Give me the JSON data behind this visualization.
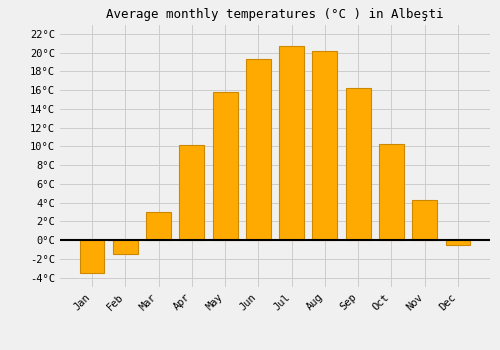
{
  "title": "Average monthly temperatures (°C ) in Albeşti",
  "months": [
    "Jan",
    "Feb",
    "Mar",
    "Apr",
    "May",
    "Jun",
    "Jul",
    "Aug",
    "Sep",
    "Oct",
    "Nov",
    "Dec"
  ],
  "values": [
    -3.5,
    -1.5,
    3.0,
    10.2,
    15.8,
    19.3,
    20.7,
    20.2,
    16.2,
    10.3,
    4.3,
    -0.5
  ],
  "bar_color": "#FFAA00",
  "bar_edge_color": "#CC8800",
  "background_color": "#F0F0F0",
  "grid_color": "#CCCCCC",
  "zero_line_color": "#000000",
  "ylim": [
    -5,
    23
  ],
  "yticks": [
    -4,
    -2,
    0,
    2,
    4,
    6,
    8,
    10,
    12,
    14,
    16,
    18,
    20,
    22
  ],
  "title_fontsize": 9,
  "tick_fontsize": 7.5,
  "font_family": "DejaVu Sans Mono"
}
